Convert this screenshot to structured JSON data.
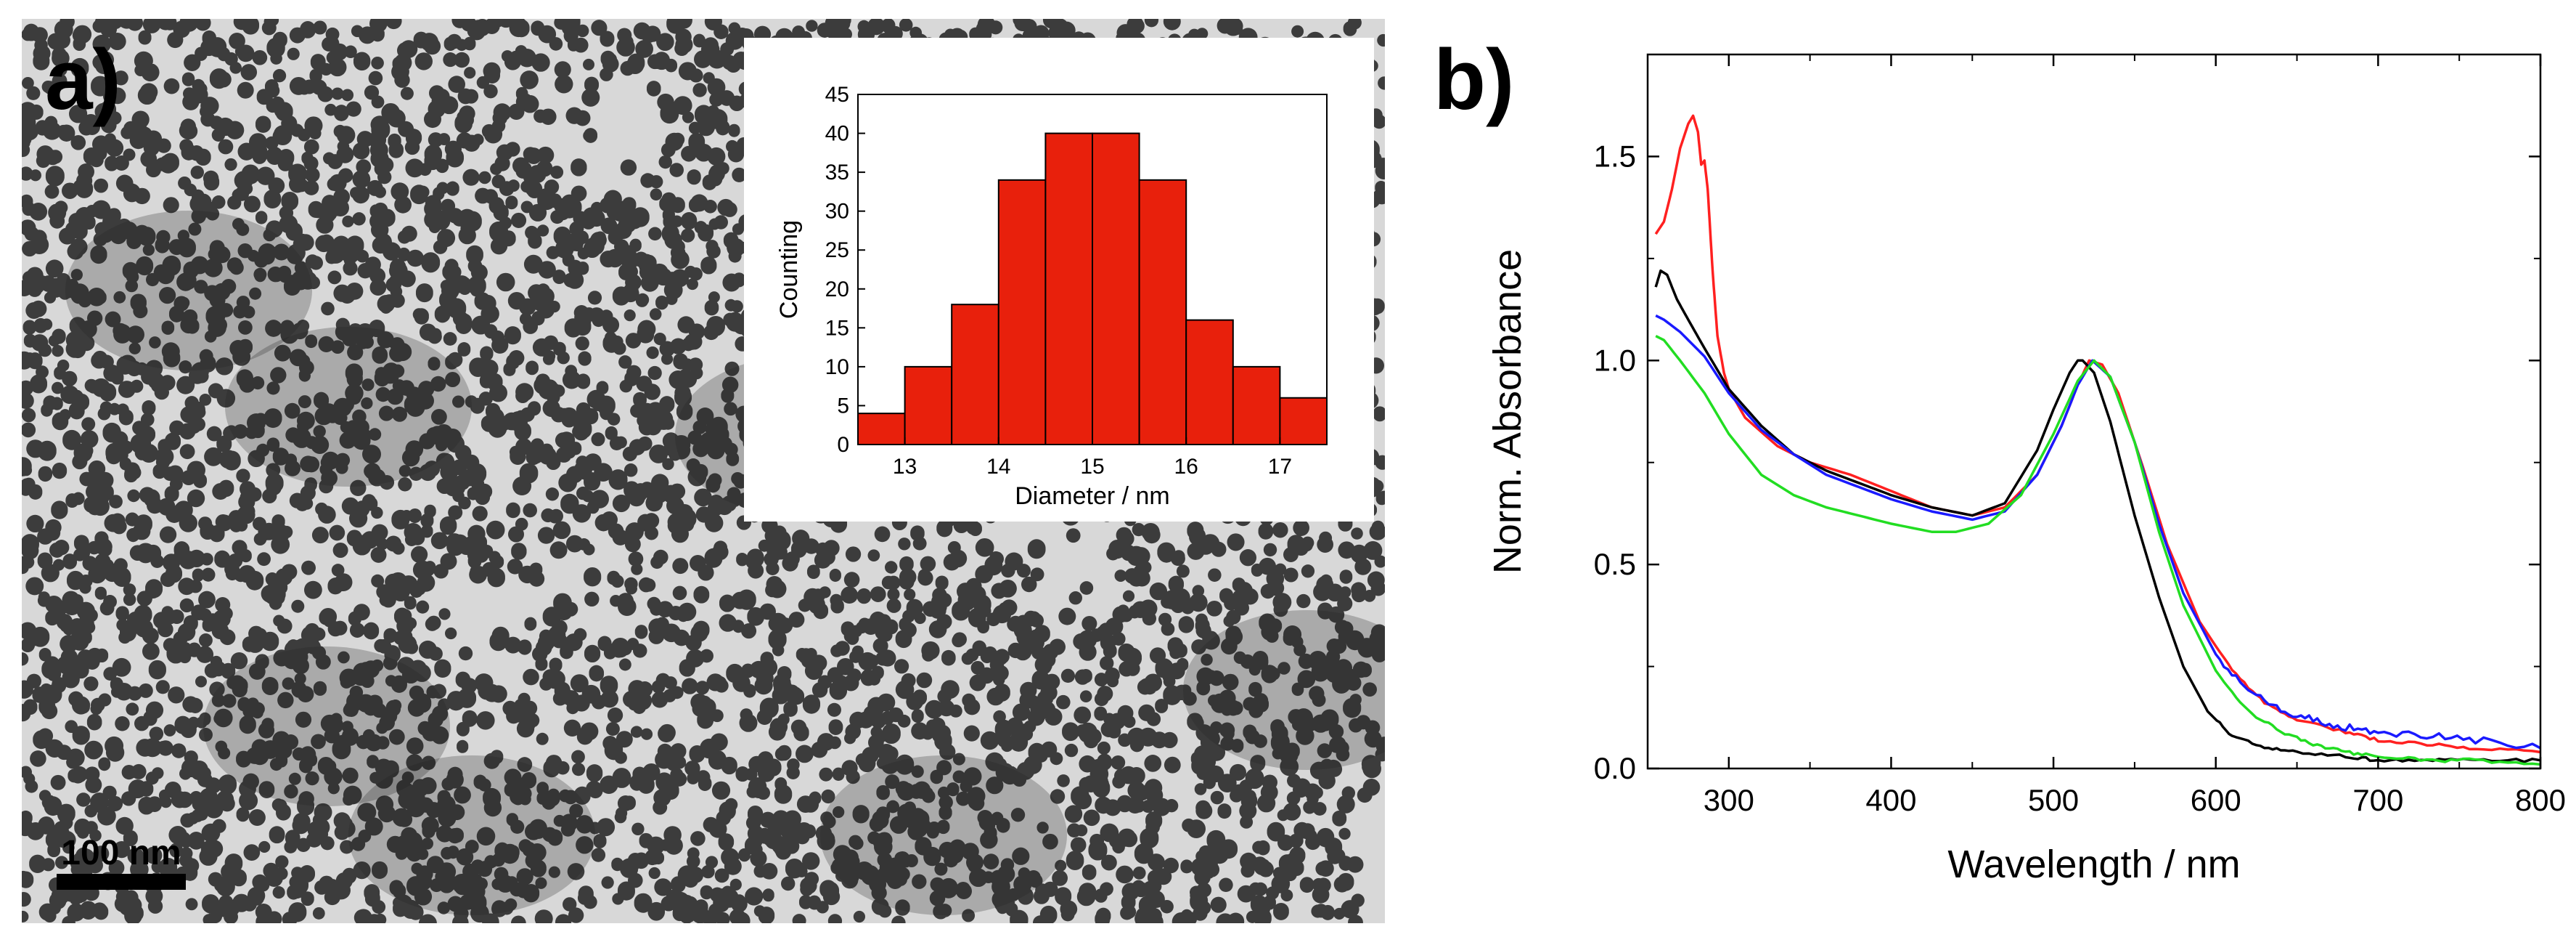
{
  "panel_a": {
    "label": "a)",
    "scale_bar_label": "100 nm",
    "image_description": "TEM micrograph of gold nanoparticles",
    "background_color": "#d8d8d8",
    "particle_color": "#2e2e2e"
  },
  "panel_b": {
    "label": "b)"
  },
  "chart_data": [
    {
      "type": "bar",
      "name": "diameter-histogram",
      "title": "",
      "xlabel": "Diameter / nm",
      "ylabel": "Counting",
      "bin_width": 0.5,
      "bin_centers": [
        12.75,
        13.25,
        13.75,
        14.25,
        14.75,
        15.25,
        15.75,
        16.25,
        16.75,
        17.25
      ],
      "values": [
        4,
        10,
        18,
        34,
        40,
        40,
        34,
        16,
        10,
        6
      ],
      "xlim": [
        12.5,
        17.5
      ],
      "ylim": [
        0,
        45
      ],
      "x_ticks": [
        13,
        14,
        15,
        16,
        17
      ],
      "y_ticks": [
        0,
        5,
        10,
        15,
        20,
        25,
        30,
        35,
        40,
        45
      ],
      "bar_color": "#e8200c",
      "grid": false
    },
    {
      "type": "line",
      "name": "uv-vis-spectra",
      "title": "",
      "xlabel": "Wavelength / nm",
      "ylabel": "Norm. Absorbance",
      "xlim": [
        250,
        800
      ],
      "ylim": [
        0,
        1.75
      ],
      "x_ticks": [
        300,
        400,
        500,
        600,
        700,
        800
      ],
      "y_ticks": [
        0.0,
        0.5,
        1.0,
        1.5
      ],
      "y_tick_labels": [
        "0.0",
        "0.5",
        "1.0",
        "1.5"
      ],
      "grid": false,
      "series": [
        {
          "name": "red",
          "color": "#ff2020",
          "x": [
            255,
            260,
            265,
            270,
            275,
            278,
            281,
            283,
            285,
            287,
            290,
            293,
            297,
            300,
            310,
            330,
            350,
            375,
            400,
            425,
            450,
            470,
            490,
            505,
            515,
            522,
            530,
            540,
            555,
            570,
            590,
            610,
            630,
            650,
            680,
            700,
            730,
            760,
            800
          ],
          "y": [
            1.31,
            1.34,
            1.42,
            1.52,
            1.58,
            1.6,
            1.56,
            1.48,
            1.49,
            1.42,
            1.22,
            1.06,
            0.97,
            0.93,
            0.86,
            0.79,
            0.75,
            0.72,
            0.68,
            0.64,
            0.62,
            0.64,
            0.72,
            0.84,
            0.94,
            1.0,
            0.99,
            0.92,
            0.74,
            0.55,
            0.36,
            0.24,
            0.16,
            0.12,
            0.09,
            0.07,
            0.06,
            0.05,
            0.04
          ]
        },
        {
          "name": "black",
          "color": "#000000",
          "x": [
            255,
            258,
            262,
            268,
            275,
            285,
            300,
            320,
            340,
            360,
            380,
            400,
            425,
            450,
            470,
            490,
            500,
            510,
            515,
            518,
            525,
            535,
            550,
            565,
            580,
            595,
            610,
            630,
            650,
            680,
            700,
            730,
            760,
            800
          ],
          "y": [
            1.18,
            1.22,
            1.21,
            1.15,
            1.1,
            1.03,
            0.93,
            0.84,
            0.77,
            0.73,
            0.7,
            0.67,
            0.64,
            0.62,
            0.65,
            0.78,
            0.88,
            0.97,
            1.0,
            1.0,
            0.97,
            0.85,
            0.62,
            0.42,
            0.25,
            0.14,
            0.08,
            0.05,
            0.04,
            0.03,
            0.02,
            0.02,
            0.02,
            0.02
          ]
        },
        {
          "name": "blue",
          "color": "#1a1aff",
          "x": [
            255,
            260,
            270,
            285,
            300,
            320,
            340,
            360,
            380,
            400,
            425,
            450,
            470,
            490,
            505,
            515,
            524,
            535,
            550,
            565,
            580,
            600,
            620,
            640,
            660,
            680,
            700,
            730,
            760,
            800
          ],
          "y": [
            1.11,
            1.1,
            1.07,
            1.01,
            0.92,
            0.83,
            0.77,
            0.72,
            0.69,
            0.66,
            0.63,
            0.61,
            0.63,
            0.72,
            0.84,
            0.94,
            1.0,
            0.96,
            0.8,
            0.6,
            0.43,
            0.28,
            0.19,
            0.14,
            0.12,
            0.1,
            0.09,
            0.08,
            0.07,
            0.05
          ]
        },
        {
          "name": "green",
          "color": "#22dd22",
          "x": [
            255,
            260,
            270,
            285,
            300,
            320,
            340,
            360,
            380,
            400,
            425,
            440,
            460,
            480,
            500,
            515,
            525,
            535,
            550,
            565,
            580,
            600,
            620,
            640,
            660,
            680,
            700,
            730,
            760,
            800
          ],
          "y": [
            1.06,
            1.05,
            1.0,
            0.92,
            0.82,
            0.72,
            0.67,
            0.64,
            0.62,
            0.6,
            0.58,
            0.58,
            0.6,
            0.67,
            0.82,
            0.95,
            1.0,
            0.96,
            0.8,
            0.58,
            0.4,
            0.24,
            0.14,
            0.09,
            0.06,
            0.04,
            0.03,
            0.02,
            0.02,
            0.01
          ]
        }
      ]
    }
  ]
}
